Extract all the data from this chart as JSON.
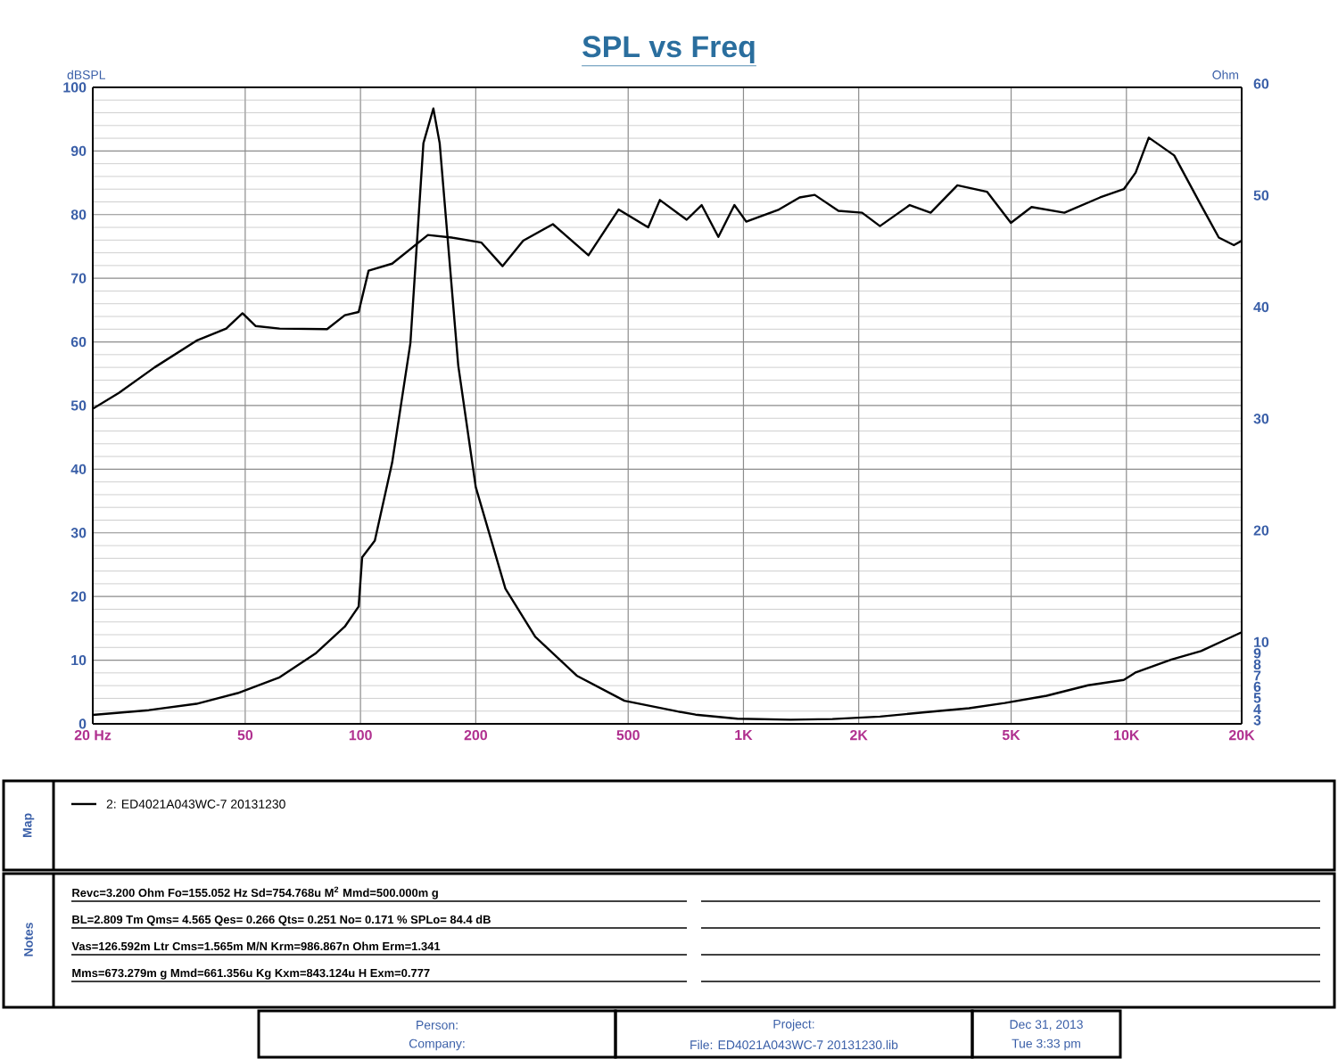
{
  "chart_data": {
    "type": "line",
    "title": "SPL vs Freq",
    "ylabel": "dBSPL",
    "y2label": "Ohm",
    "xlim": [
      20,
      20000
    ],
    "ylim": [
      0,
      100
    ],
    "y2lim": [
      3,
      60
    ],
    "log": "x",
    "grid": true,
    "legend": "bottom",
    "xticks": [
      {
        "value": 20,
        "label": "20  Hz"
      },
      50,
      100,
      200,
      500,
      {
        "value": 1000,
        "label": "1K"
      },
      {
        "value": 2000,
        "label": "2K"
      },
      {
        "value": 5000,
        "label": "5K"
      },
      {
        "value": 10000,
        "label": "10K"
      },
      {
        "value": 20000,
        "label": "20K"
      }
    ],
    "yticks": [
      0,
      10,
      20,
      30,
      40,
      50,
      60,
      70,
      80,
      90,
      100
    ],
    "y2ticks": [
      3,
      4,
      5,
      6,
      7,
      8,
      9,
      10,
      20,
      30,
      40,
      50,
      60
    ],
    "series": [
      {
        "name": "2: ED4021A043WC-7   20131230",
        "color": "#000000",
        "x": [
          20,
          23.4,
          29,
          37.3,
          44.6,
          49.2,
          53.2,
          61.5,
          81.8,
          91,
          98.9,
          105,
          121,
          150,
          173,
          207,
          235,
          266,
          318,
          394,
          472,
          564,
          605,
          711,
          778,
          860,
          947,
          1017,
          1238,
          1402,
          1535,
          1770,
          2041,
          2272,
          2718,
          3082,
          3620,
          4324,
          4993,
          5654,
          6888,
          8537,
          9843,
          10570,
          11440,
          13330,
          15660,
          17430,
          19080,
          20000
        ],
        "values": [
          49.5,
          52,
          56,
          60.2,
          62.1,
          64.5,
          62.5,
          62.1,
          62,
          64.2,
          64.7,
          71.2,
          72.3,
          76.8,
          76.4,
          75.6,
          71.9,
          75.9,
          78.5,
          73.6,
          80.8,
          78,
          82.3,
          79.2,
          81.5,
          76.5,
          81.5,
          78.9,
          80.8,
          82.7,
          83.1,
          80.6,
          80.3,
          78.2,
          81.5,
          80.3,
          84.6,
          83.6,
          78.7,
          81.2,
          80.3,
          82.7,
          84,
          86.6,
          92.1,
          89.3,
          81.5,
          76.4,
          75.2,
          75.9
        ]
      },
      {
        "color": "#000000",
        "axis": "y2",
        "x": [
          20,
          28,
          37.3,
          47.8,
          61.5,
          76.2,
          91,
          98.9,
          101,
          109,
          121,
          135,
          146,
          155,
          161,
          180,
          200,
          239,
          286,
          367,
          489,
          674,
          750,
          964,
          1329,
          1708,
          2272,
          3026,
          3884,
          4813,
          6188,
          7944,
          9843,
          10570,
          13110,
          15660,
          18070,
          20000
        ],
        "values": [
          3.79,
          4.22,
          4.79,
          5.75,
          7.16,
          9.28,
          11.7,
          13.5,
          17.9,
          19.4,
          26.4,
          37.1,
          55,
          58.1,
          55,
          35.1,
          24.2,
          15.1,
          10.8,
          7.31,
          5.06,
          4.1,
          3.82,
          3.46,
          3.37,
          3.43,
          3.65,
          4.05,
          4.39,
          4.86,
          5.51,
          6.45,
          6.93,
          7.6,
          8.75,
          9.51,
          10.5,
          11.2
        ]
      }
    ],
    "annotations": [
      "Map",
      "Notes",
      "Revc=3.200 Ohm  Fo=155.052 Hz  Sd=754.768u M$^{2}$  Mmd=500.000m g",
      "BL=2.809 Tm  Qms= 4.565  Qes= 0.266  Qts= 0.251  No= 0.171 %  SPLo= 84.4 dB",
      "Vas=126.592m Ltr  Cms=1.565m M/N  Krm=986.867n Ohm  Erm=1.341",
      "Mms=673.279m g  Mmd=661.356u Kg  Kxm=843.124u H  Exm=0.777",
      "Person:",
      "Company:",
      "Project:",
      "File: ED4021A043WC-7 20131230.lib",
      "Dec 31, 2013",
      "Tue  3:33 pm"
    ]
  }
}
